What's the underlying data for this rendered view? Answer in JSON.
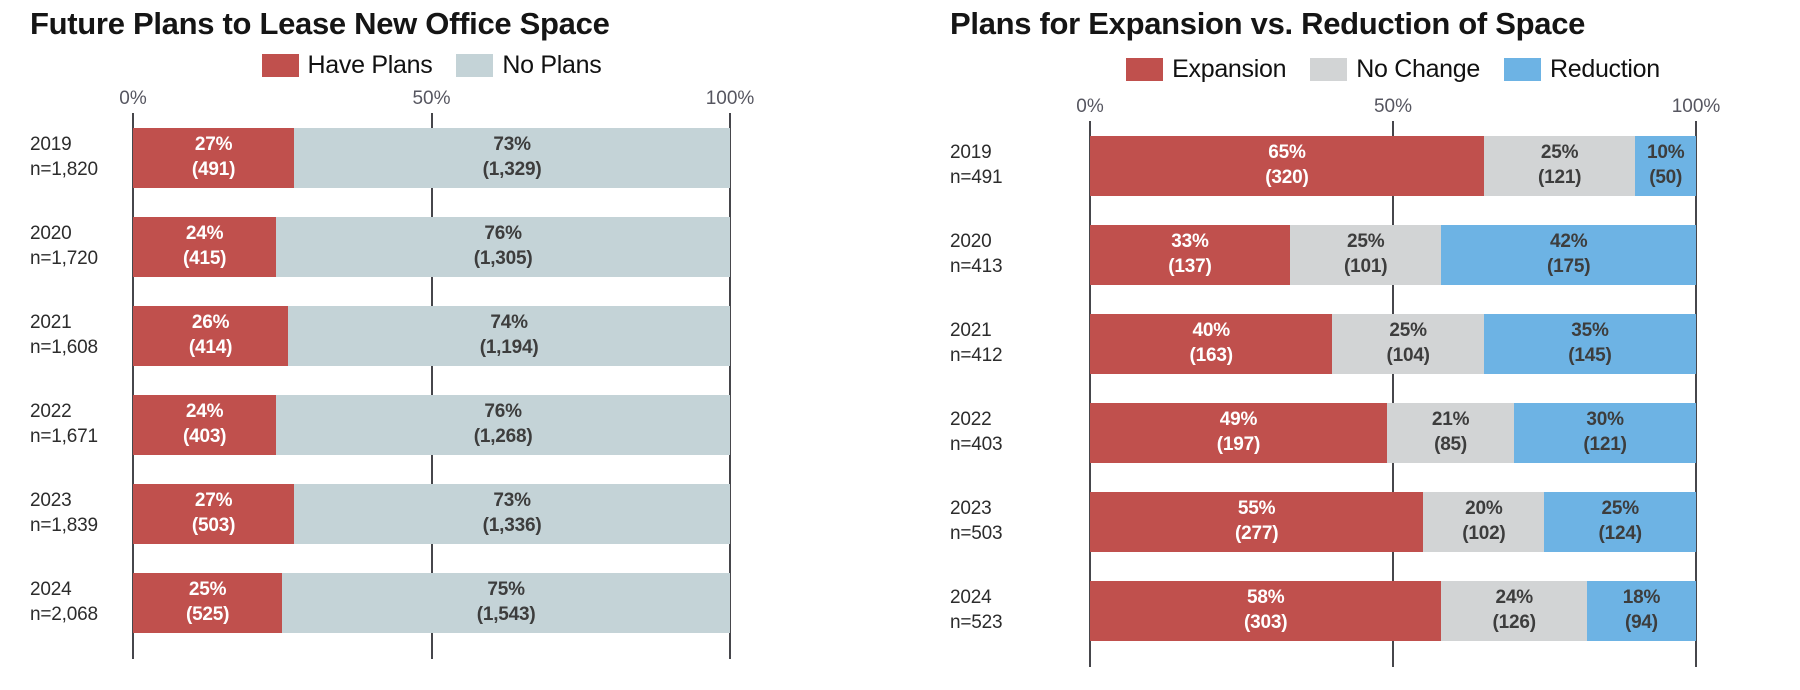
{
  "chart_data": [
    {
      "type": "bar",
      "stacked": true,
      "orientation": "horizontal",
      "title": "Future Plans to Lease New Office Space",
      "legend_position": "top",
      "grid": "vertical lines at 0/50/100",
      "xlim": [
        0,
        100
      ],
      "x_ticks": [
        "0%",
        "50%",
        "100%"
      ],
      "categories": [
        "2019",
        "2020",
        "2021",
        "2022",
        "2023",
        "2024"
      ],
      "category_sublabels": [
        "n=1,820",
        "n=1,720",
        "n=1,608",
        "n=1,671",
        "n=1,839",
        "n=2,068"
      ],
      "series": [
        {
          "name": "Have Plans",
          "color": "#c0504d",
          "label_color": "#ffffff",
          "values": [
            27,
            24,
            26,
            24,
            27,
            25
          ],
          "count_labels": [
            "(491)",
            "(415)",
            "(414)",
            "(403)",
            "(503)",
            "(525)"
          ]
        },
        {
          "name": "No Plans",
          "color": "#c4d3d7",
          "label_color": "#3d3d3d",
          "values": [
            73,
            76,
            74,
            76,
            73,
            75
          ],
          "count_labels": [
            "(1,329)",
            "(1,305)",
            "(1,194)",
            "(1,268)",
            "(1,336)",
            "(1,543)"
          ]
        }
      ]
    },
    {
      "type": "bar",
      "stacked": true,
      "orientation": "horizontal",
      "title": "Plans for Expansion vs. Reduction of Space",
      "legend_position": "top",
      "grid": "vertical lines at 0/50/100",
      "xlim": [
        0,
        100
      ],
      "x_ticks": [
        "0%",
        "50%",
        "100%"
      ],
      "categories": [
        "2019",
        "2020",
        "2021",
        "2022",
        "2023",
        "2024"
      ],
      "category_sublabels": [
        "n=491",
        "n=413",
        "n=412",
        "n=403",
        "n=503",
        "n=523"
      ],
      "series": [
        {
          "name": "Expansion",
          "color": "#c0504d",
          "label_color": "#ffffff",
          "values": [
            65,
            33,
            40,
            49,
            55,
            58
          ],
          "count_labels": [
            "(320)",
            "(137)",
            "(163)",
            "(197)",
            "(277)",
            "(303)"
          ]
        },
        {
          "name": "No Change",
          "color": "#d2d4d5",
          "label_color": "#3d3d3d",
          "values": [
            25,
            25,
            25,
            21,
            20,
            24
          ],
          "count_labels": [
            "(121)",
            "(101)",
            "(104)",
            "(85)",
            "(102)",
            "(126)"
          ]
        },
        {
          "name": "Reduction",
          "color": "#6db3e4",
          "label_color": "#3d3d3d",
          "values": [
            10,
            42,
            35,
            30,
            25,
            18
          ],
          "count_labels": [
            "(50)",
            "(175)",
            "(145)",
            "(121)",
            "(124)",
            "(94)"
          ]
        }
      ]
    }
  ]
}
